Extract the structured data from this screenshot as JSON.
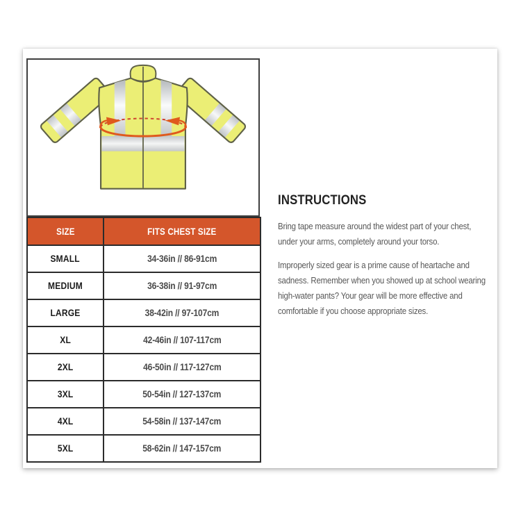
{
  "table": {
    "headers": [
      "SIZE",
      "FITS CHEST SIZE"
    ],
    "rows": [
      {
        "size": "SMALL",
        "chest": "34-36in // 86-91cm"
      },
      {
        "size": "MEDIUM",
        "chest": "36-38in // 91-97cm"
      },
      {
        "size": "LARGE",
        "chest": "38-42in // 97-107cm"
      },
      {
        "size": "XL",
        "chest": "42-46in // 107-117cm"
      },
      {
        "size": "2XL",
        "chest": "46-50in // 117-127cm"
      },
      {
        "size": "3XL",
        "chest": "50-54in // 127-137cm"
      },
      {
        "size": "4XL",
        "chest": "54-58in // 137-147cm"
      },
      {
        "size": "5XL",
        "chest": "58-62in // 147-157cm"
      }
    ]
  },
  "instructions": {
    "heading": "INSTRUCTIONS",
    "paragraphs": [
      "Bring tape measure around the widest part of your chest, under your arms, completely around your torso.",
      "Improperly sized gear is a prime cause of heartache and sadness. Remember when you showed up at school wearing high-water pants? Your gear will be more effective and comfortable if you choose appropriate sizes."
    ]
  },
  "colors": {
    "header_orange": "#d4562b",
    "header_text": "#ffffff",
    "table_border": "#2b2b2b",
    "jacket_yellow": "#ebee75",
    "jacket_outline": "#5f6148",
    "reflective_silver": "#c2c5c8",
    "tape_arrow_orange": "#df5a1d",
    "tape_arrow_red_dashed": "#ce4130"
  }
}
